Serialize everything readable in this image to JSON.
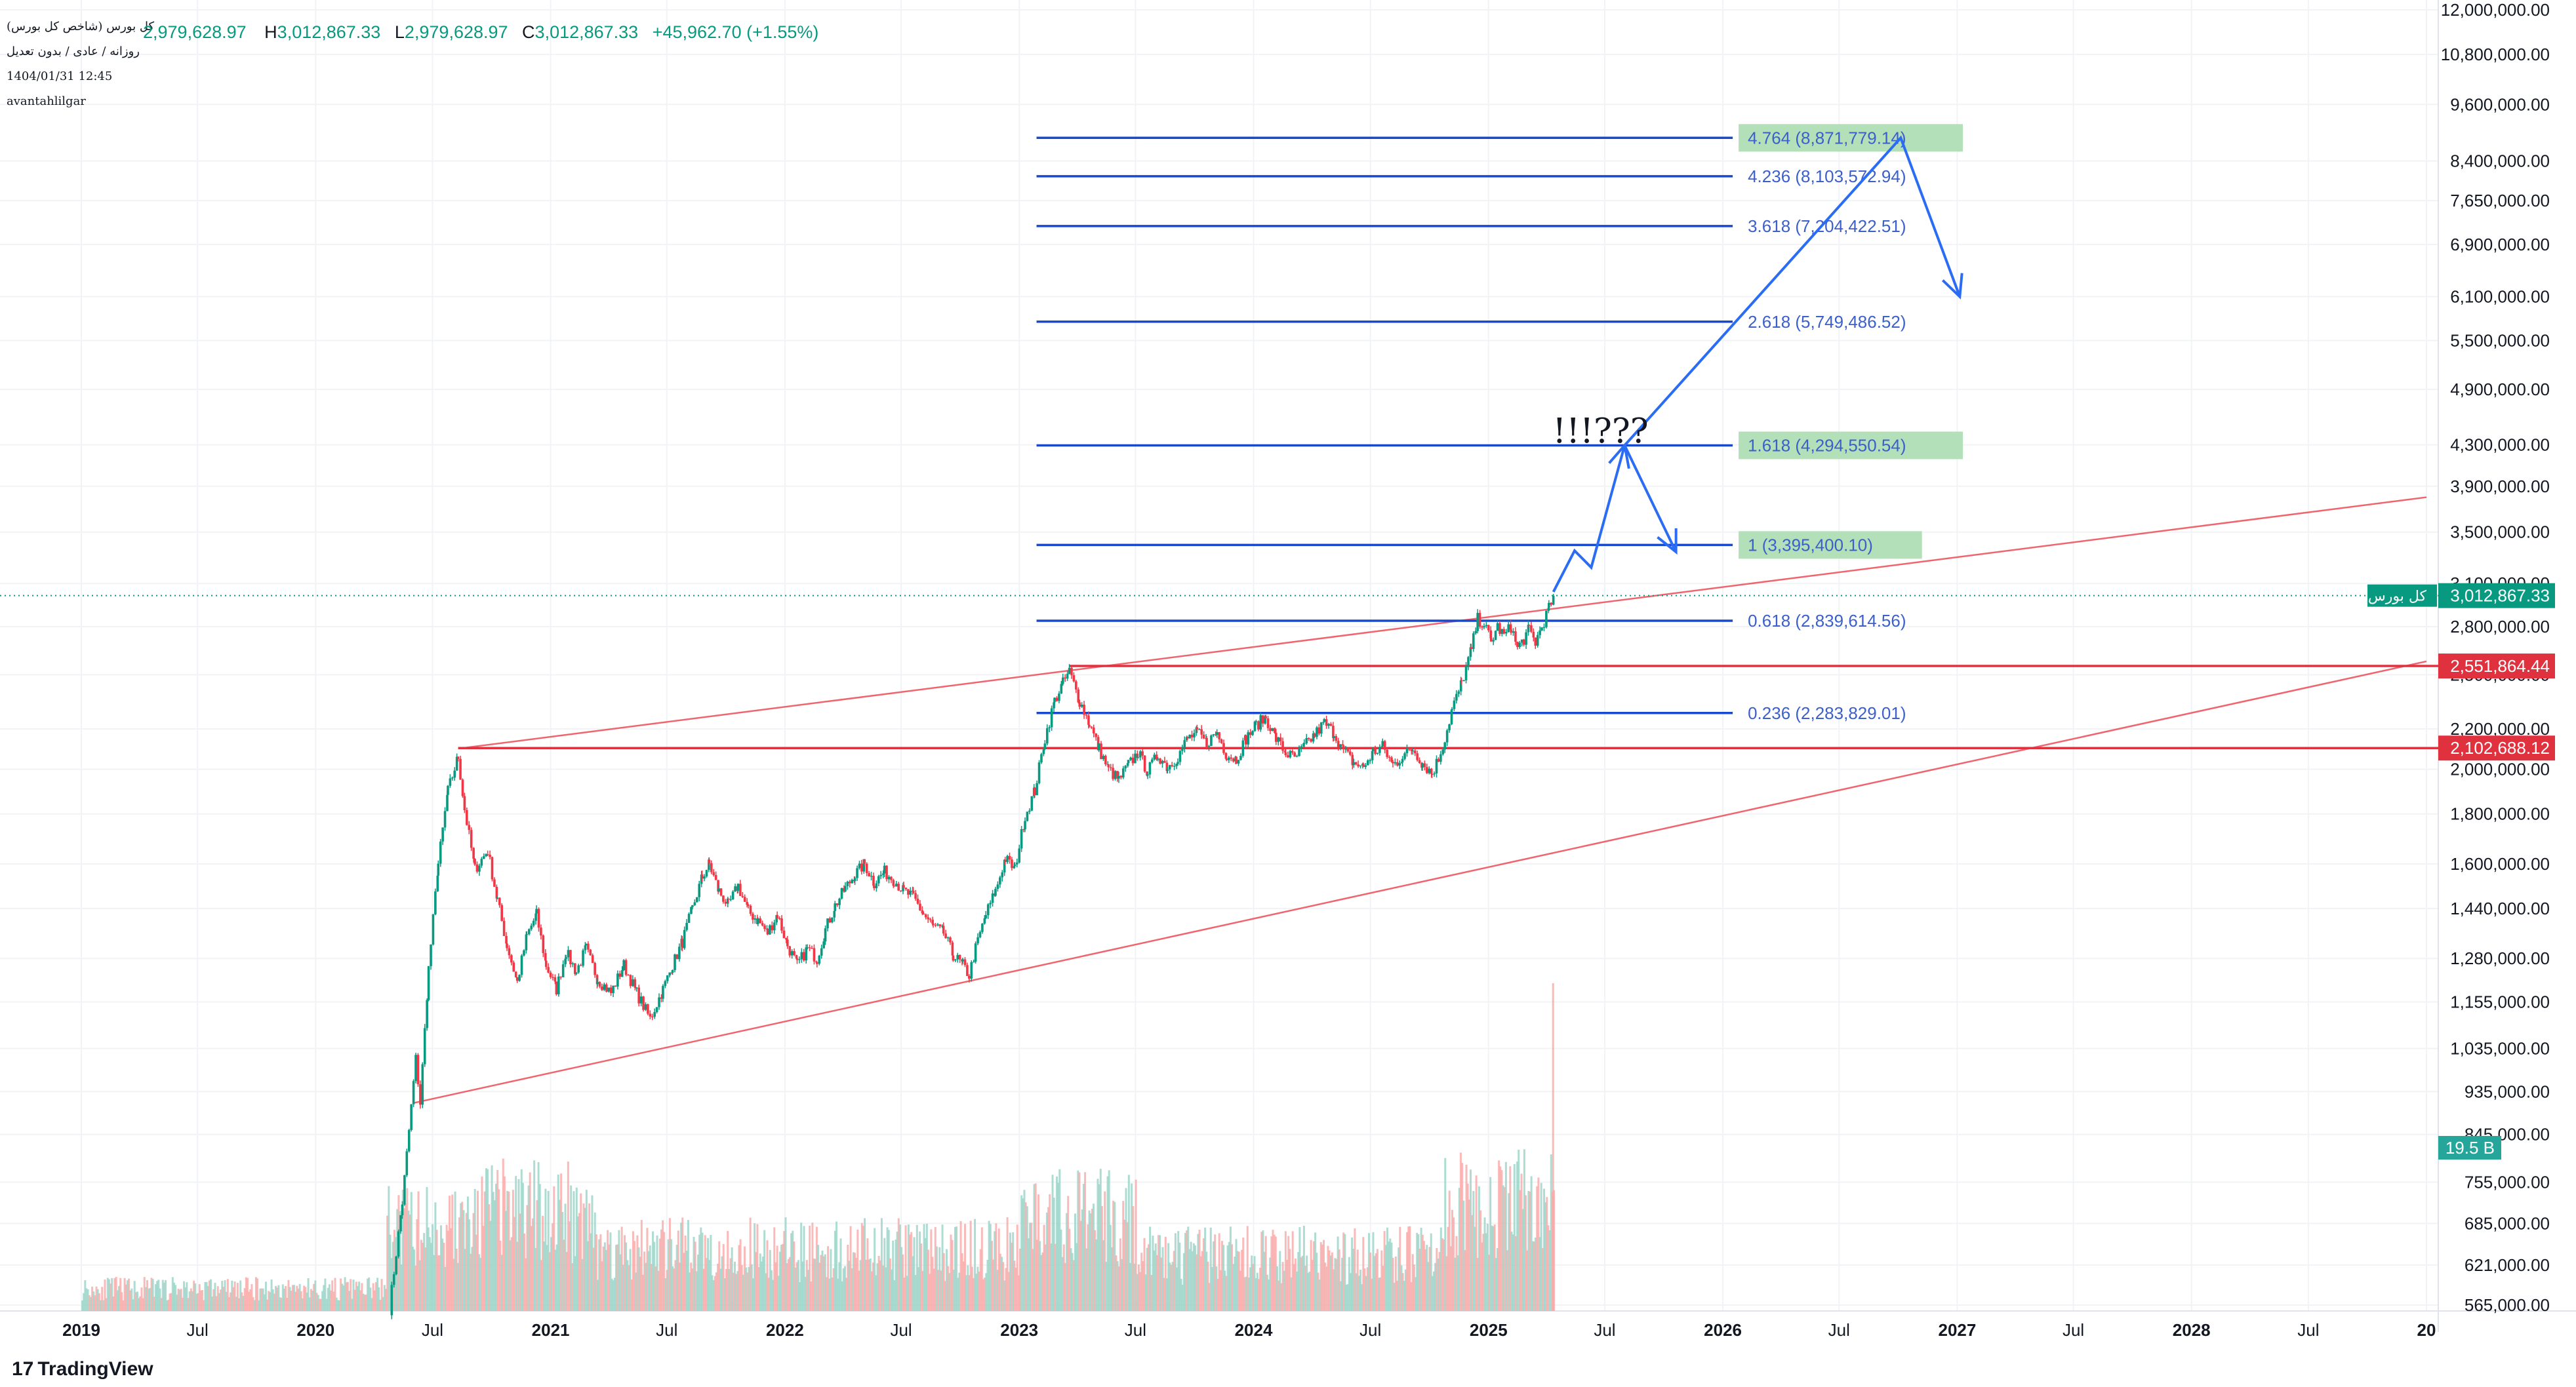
{
  "header": {
    "symbol_name": "کل بورس (شاخص کل بورس)",
    "open_value": "2,979,628.97",
    "high_label": "H",
    "high_value": "3,012,867.33",
    "low_label": "L",
    "low_value": "2,979,628.97",
    "close_label": "C",
    "close_value": "3,012,867.33",
    "change": "+45,962.70 (+1.55%)",
    "interval": "روزانه / عادی / بدون تعدیل",
    "datetime": "1404/01/31 12:45",
    "author": "avantahlilgar"
  },
  "branding": {
    "logo_text": "TradingView",
    "logo_mark": "17"
  },
  "colors": {
    "up": "#089981",
    "down": "#f23645",
    "fib": "#1848cc",
    "fib_label": "#3b5fcb",
    "red_line": "#e0313f",
    "trend_line": "#f0646e",
    "arrow": "#2a6df4",
    "highlight": "#b3e0b8"
  },
  "chart_data": {
    "type": "candlestick",
    "scale": "log",
    "y_axis_ticks": [
      "12,000,000.00",
      "10,800,000.00",
      "9,600,000.00",
      "8,400,000.00",
      "7,650,000.00",
      "6,900,000.00",
      "6,100,000.00",
      "5,500,000.00",
      "4,900,000.00",
      "4,300,000.00",
      "3,900,000.00",
      "3,500,000.00",
      "3,100,000.00",
      "2,800,000.00",
      "2,500,000.00",
      "2,200,000.00",
      "2,000,000.00",
      "1,800,000.00",
      "1,600,000.00",
      "1,440,000.00",
      "1,280,000.00",
      "1,155,000.00",
      "1,035,000.00",
      "935,000.00",
      "845,000.00",
      "755,000.00",
      "685,000.00",
      "621,000.00",
      "565,000.00"
    ],
    "y_tick_values": [
      12000000,
      10800000,
      9600000,
      8400000,
      7650000,
      6900000,
      6100000,
      5500000,
      4900000,
      4300000,
      3900000,
      3500000,
      3100000,
      2800000,
      2500000,
      2200000,
      2000000,
      1800000,
      1600000,
      1440000,
      1280000,
      1155000,
      1035000,
      935000,
      845000,
      755000,
      685000,
      621000,
      565000
    ],
    "x_axis_labels": [
      "2019",
      "Jul",
      "2020",
      "Jul",
      "2021",
      "Jul",
      "2022",
      "Jul",
      "2023",
      "Jul",
      "2024",
      "Jul",
      "2025",
      "Jul",
      "2026",
      "Jul",
      "2027",
      "Jul",
      "2028",
      "Jul",
      "20"
    ],
    "x_label_bold": [
      true,
      false,
      true,
      false,
      true,
      false,
      true,
      false,
      true,
      false,
      true,
      false,
      true,
      false,
      true,
      false,
      true,
      false,
      true,
      false,
      true
    ],
    "x_label_dates": [
      "2019-01-01",
      "2019-07-01",
      "2020-01-01",
      "2020-07-01",
      "2021-01-01",
      "2021-07-01",
      "2022-01-01",
      "2022-07-01",
      "2023-01-01",
      "2023-07-01",
      "2024-01-01",
      "2024-07-01",
      "2025-01-01",
      "2025-07-01",
      "2026-01-01",
      "2026-07-01",
      "2027-01-01",
      "2027-07-01",
      "2028-01-01",
      "2028-07-01",
      "2029-01-01"
    ],
    "price_path": [
      [
        "2020-04-25",
        560000
      ],
      [
        "2020-05-15",
        720000
      ],
      [
        "2020-06-05",
        1010000
      ],
      [
        "2020-06-12",
        910000
      ],
      [
        "2020-06-25",
        1250000
      ],
      [
        "2020-07-10",
        1600000
      ],
      [
        "2020-07-25",
        1900000
      ],
      [
        "2020-08-10",
        2060000
      ],
      [
        "2020-08-20",
        1820000
      ],
      [
        "2020-09-05",
        1580000
      ],
      [
        "2020-09-25",
        1650000
      ],
      [
        "2020-10-10",
        1470000
      ],
      [
        "2020-10-25",
        1320000
      ],
      [
        "2020-11-10",
        1210000
      ],
      [
        "2020-11-25",
        1350000
      ],
      [
        "2020-12-10",
        1420000
      ],
      [
        "2020-12-25",
        1260000
      ],
      [
        "2021-01-10",
        1190000
      ],
      [
        "2021-01-25",
        1300000
      ],
      [
        "2021-02-10",
        1240000
      ],
      [
        "2021-02-25",
        1310000
      ],
      [
        "2021-03-15",
        1220000
      ],
      [
        "2021-04-05",
        1180000
      ],
      [
        "2021-04-25",
        1260000
      ],
      [
        "2021-05-15",
        1180000
      ],
      [
        "2021-06-05",
        1110000
      ],
      [
        "2021-06-25",
        1190000
      ],
      [
        "2021-07-10",
        1260000
      ],
      [
        "2021-07-25",
        1330000
      ],
      [
        "2021-08-10",
        1440000
      ],
      [
        "2021-08-25",
        1550000
      ],
      [
        "2021-09-05",
        1600000
      ],
      [
        "2021-09-20",
        1500000
      ],
      [
        "2021-10-05",
        1450000
      ],
      [
        "2021-10-20",
        1520000
      ],
      [
        "2021-11-05",
        1430000
      ],
      [
        "2021-11-20",
        1400000
      ],
      [
        "2021-12-05",
        1360000
      ],
      [
        "2021-12-20",
        1420000
      ],
      [
        "2022-01-05",
        1320000
      ],
      [
        "2022-01-20",
        1260000
      ],
      [
        "2022-02-05",
        1310000
      ],
      [
        "2022-02-20",
        1280000
      ],
      [
        "2022-03-05",
        1370000
      ],
      [
        "2022-03-20",
        1450000
      ],
      [
        "2022-04-05",
        1510000
      ],
      [
        "2022-04-20",
        1560000
      ],
      [
        "2022-05-05",
        1600000
      ],
      [
        "2022-05-20",
        1530000
      ],
      [
        "2022-06-05",
        1570000
      ],
      [
        "2022-06-20",
        1540000
      ],
      [
        "2022-07-05",
        1500000
      ],
      [
        "2022-07-20",
        1480000
      ],
      [
        "2022-08-05",
        1420000
      ],
      [
        "2022-08-20",
        1380000
      ],
      [
        "2022-09-05",
        1360000
      ],
      [
        "2022-09-20",
        1290000
      ],
      [
        "2022-10-05",
        1260000
      ],
      [
        "2022-10-15",
        1230000
      ],
      [
        "2022-10-25",
        1310000
      ],
      [
        "2022-11-10",
        1420000
      ],
      [
        "2022-11-25",
        1500000
      ],
      [
        "2022-12-10",
        1620000
      ],
      [
        "2022-12-25",
        1580000
      ],
      [
        "2023-01-10",
        1790000
      ],
      [
        "2023-01-25",
        1900000
      ],
      [
        "2023-02-10",
        2150000
      ],
      [
        "2023-02-25",
        2350000
      ],
      [
        "2023-03-10",
        2450000
      ],
      [
        "2023-03-20",
        2520000
      ],
      [
        "2023-04-05",
        2350000
      ],
      [
        "2023-04-20",
        2230000
      ],
      [
        "2023-05-05",
        2100000
      ],
      [
        "2023-05-20",
        2000000
      ],
      [
        "2023-06-05",
        1950000
      ],
      [
        "2023-06-20",
        2020000
      ],
      [
        "2023-07-05",
        2080000
      ],
      [
        "2023-07-20",
        1990000
      ],
      [
        "2023-08-05",
        2070000
      ],
      [
        "2023-08-20",
        2010000
      ],
      [
        "2023-09-05",
        2060000
      ],
      [
        "2023-09-20",
        2150000
      ],
      [
        "2023-10-05",
        2180000
      ],
      [
        "2023-10-20",
        2130000
      ],
      [
        "2023-11-05",
        2180000
      ],
      [
        "2023-11-20",
        2070000
      ],
      [
        "2023-12-05",
        2050000
      ],
      [
        "2023-12-20",
        2150000
      ],
      [
        "2024-01-05",
        2220000
      ],
      [
        "2024-01-20",
        2260000
      ],
      [
        "2024-02-05",
        2150000
      ],
      [
        "2024-02-20",
        2080000
      ],
      [
        "2024-03-05",
        2050000
      ],
      [
        "2024-03-20",
        2110000
      ],
      [
        "2024-04-05",
        2170000
      ],
      [
        "2024-04-20",
        2230000
      ],
      [
        "2024-05-05",
        2180000
      ],
      [
        "2024-05-20",
        2090000
      ],
      [
        "2024-06-05",
        2030000
      ],
      [
        "2024-06-20",
        2010000
      ],
      [
        "2024-07-05",
        2080000
      ],
      [
        "2024-07-20",
        2110000
      ],
      [
        "2024-08-05",
        2020000
      ],
      [
        "2024-08-20",
        2060000
      ],
      [
        "2024-09-05",
        2100000
      ],
      [
        "2024-09-20",
        2030000
      ],
      [
        "2024-10-05",
        1980000
      ],
      [
        "2024-10-15",
        2050000
      ],
      [
        "2024-10-25",
        2150000
      ],
      [
        "2024-11-05",
        2300000
      ],
      [
        "2024-11-20",
        2450000
      ],
      [
        "2024-12-05",
        2650000
      ],
      [
        "2024-12-15",
        2850000
      ],
      [
        "2024-12-25",
        2820000
      ],
      [
        "2025-01-05",
        2700000
      ],
      [
        "2025-01-15",
        2800000
      ],
      [
        "2025-01-25",
        2740000
      ],
      [
        "2025-02-05",
        2800000
      ],
      [
        "2025-02-15",
        2660000
      ],
      [
        "2025-02-25",
        2720000
      ],
      [
        "2025-03-05",
        2780000
      ],
      [
        "2025-03-15",
        2700000
      ],
      [
        "2025-03-25",
        2800000
      ],
      [
        "2025-04-05",
        2920000
      ],
      [
        "2025-04-12",
        3012867.33
      ]
    ],
    "volume": {
      "unit": "B",
      "last_value_label": "19.5 B"
    },
    "fib_levels": [
      {
        "ratio": "0.236",
        "value": 2283829.01,
        "label": "0.236 (2,283,829.01)",
        "highlight": false
      },
      {
        "ratio": "0.618",
        "value": 2839614.56,
        "label": "0.618 (2,839,614.56)",
        "highlight": false
      },
      {
        "ratio": "1",
        "value": 3395400.1,
        "label": "1 (3,395,400.10)",
        "highlight": true
      },
      {
        "ratio": "1.618",
        "value": 4294550.54,
        "label": "1.618 (4,294,550.54)",
        "highlight": true
      },
      {
        "ratio": "2.618",
        "value": 5749486.52,
        "label": "2.618 (5,749,486.52)",
        "highlight": false
      },
      {
        "ratio": "3.618",
        "value": 7204422.51,
        "label": "3.618 (7,204,422.51)",
        "highlight": false
      },
      {
        "ratio": "4.236",
        "value": 8103572.94,
        "label": "4.236 (8,103,572.94)",
        "highlight": false
      },
      {
        "ratio": "4.764",
        "value": 8871779.14,
        "label": "4.764 (8,871,779.14)",
        "highlight": true
      }
    ],
    "fib_start_date": "2023-03-20",
    "fib_end_date": "2026-01-01",
    "horizontal_levels": [
      {
        "value": 2551864.44,
        "label": "2,551,864.44",
        "start_date": "2023-03-20"
      },
      {
        "value": 2102688.12,
        "label": "2,102,688.12",
        "start_date": "2020-08-10"
      }
    ],
    "last_price": {
      "value": 3012867.33,
      "label": "3,012,867.33",
      "name": "کل بورس"
    },
    "trend_lines": [
      {
        "from": [
          "2020-08-10",
          2100000
        ],
        "to": [
          "2029-01-01",
          3800000
        ]
      },
      {
        "from": [
          "2020-06-01",
          910000
        ],
        "to": [
          "2029-01-01",
          2580000
        ]
      }
    ],
    "projection_path": [
      [
        "2025-04-12",
        3040000
      ],
      [
        "2025-05-15",
        3350000
      ],
      [
        "2025-06-10",
        3220000
      ],
      [
        "2025-08-01",
        4294550
      ],
      [
        "2025-10-20",
        3340000
      ]
    ],
    "projection_path_2": [
      [
        "2025-08-01",
        4294550
      ],
      [
        "2026-10-05",
        8871779
      ],
      [
        "2027-01-05",
        6100000
      ]
    ],
    "annotation": "!!!???"
  }
}
